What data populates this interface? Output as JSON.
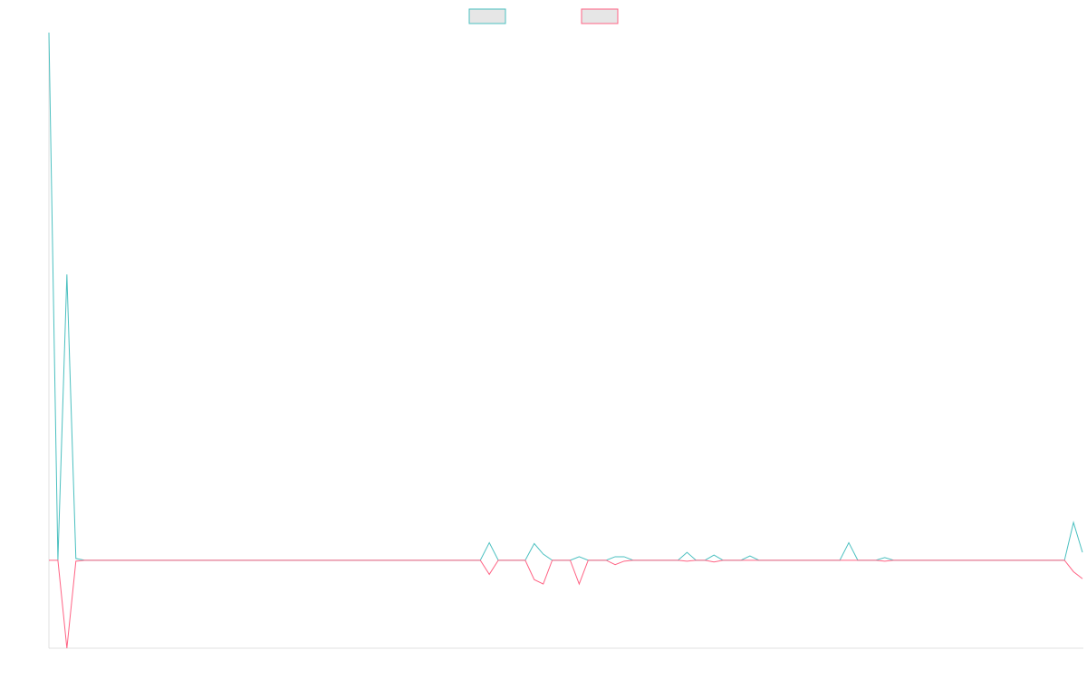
{
  "chart_data": {
    "type": "line",
    "legend": "top",
    "ylim": [
      -100,
      600
    ],
    "series": [
      {
        "color": "#4bc0c0",
        "values": [
          600,
          0,
          325,
          2,
          0,
          0,
          0,
          0,
          0,
          0,
          0,
          0,
          0,
          0,
          0,
          0,
          0,
          0,
          0,
          0,
          0,
          0,
          0,
          0,
          0,
          0,
          0,
          0,
          0,
          0,
          0,
          0,
          0,
          0,
          0,
          0,
          0,
          0,
          0,
          0,
          0,
          0,
          0,
          0,
          0,
          0,
          0,
          0,
          0,
          20,
          0,
          0,
          0,
          0,
          19,
          7,
          0,
          0,
          0,
          4,
          0,
          0,
          0,
          4,
          4,
          0,
          0,
          0,
          0,
          0,
          0,
          9,
          0,
          0,
          6,
          0,
          0,
          0,
          5,
          0,
          0,
          0,
          0,
          0,
          0,
          0,
          0,
          0,
          0,
          20,
          0,
          0,
          0,
          3,
          0,
          0,
          0,
          0,
          0,
          0,
          0,
          0,
          0,
          0,
          0,
          0,
          0,
          0,
          0,
          0,
          0,
          0,
          0,
          0,
          43,
          9
        ]
      },
      {
        "color": "#ff6384",
        "values": [
          0,
          0,
          -100,
          -1,
          0,
          0,
          0,
          0,
          0,
          0,
          0,
          0,
          0,
          0,
          0,
          0,
          0,
          0,
          0,
          0,
          0,
          0,
          0,
          0,
          0,
          0,
          0,
          0,
          0,
          0,
          0,
          0,
          0,
          0,
          0,
          0,
          0,
          0,
          0,
          0,
          0,
          0,
          0,
          0,
          0,
          0,
          0,
          0,
          0,
          -16,
          0,
          0,
          0,
          0,
          -22,
          -27,
          0,
          0,
          0,
          -27,
          0,
          0,
          0,
          -5,
          -1,
          0,
          0,
          0,
          0,
          0,
          0,
          -1,
          0,
          0,
          -2,
          0,
          0,
          0,
          0,
          0,
          0,
          0,
          0,
          0,
          0,
          0,
          0,
          0,
          0,
          0,
          0,
          0,
          0,
          -1,
          0,
          0,
          0,
          0,
          0,
          0,
          0,
          0,
          0,
          0,
          0,
          0,
          0,
          0,
          0,
          0,
          0,
          0,
          0,
          0,
          -13,
          -21
        ]
      }
    ]
  }
}
